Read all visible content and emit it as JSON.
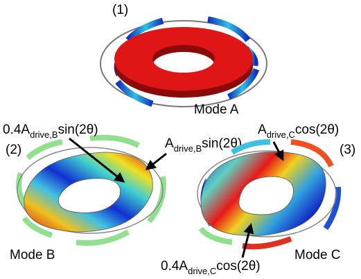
{
  "panels": [
    {
      "number": "(1)",
      "mode": "Mode A"
    },
    {
      "number": "(2)",
      "mode": "Mode B",
      "annotations": [
        {
          "pre": "0.4A",
          "sub": "drive,B",
          "post": "sin(2θ)"
        },
        {
          "pre": "A",
          "sub": "drive,B",
          "post": "sin(2θ)"
        }
      ]
    },
    {
      "number": "(3)",
      "mode": "Mode C",
      "annotations": [
        {
          "pre": "A",
          "sub": "drive,C",
          "post": "cos(2θ)"
        },
        {
          "pre": "0.4A",
          "sub": "drive,C",
          "post": "cos(2θ)"
        }
      ]
    }
  ]
}
